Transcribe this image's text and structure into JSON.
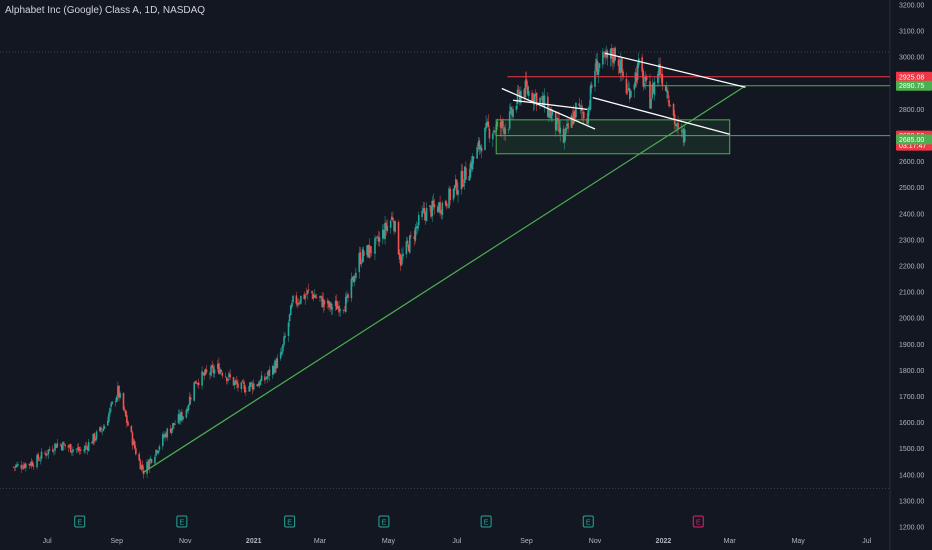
{
  "chart_data": {
    "type": "candlestick",
    "title": "Alphabet Inc (Google) Class A, 1D, NASDAQ",
    "y_axis": {
      "range": [
        1200,
        3200
      ],
      "ticks": [
        "3200.00",
        "3100.00",
        "3000.00",
        "2900.00",
        "2800.00",
        "2700.00",
        "2600.00",
        "2500.00",
        "2400.00",
        "2300.00",
        "2200.00",
        "2100.00",
        "2000.00",
        "1900.00",
        "1800.00",
        "1700.00",
        "1600.00",
        "1500.00",
        "1400.00",
        "1300.00",
        "1200.00"
      ],
      "side": "right"
    },
    "x_axis": {
      "ticks": [
        {
          "label": "Jul",
          "bold": false
        },
        {
          "label": "Sep",
          "bold": false
        },
        {
          "label": "Nov",
          "bold": false
        },
        {
          "label": "2021",
          "bold": true
        },
        {
          "label": "Mar",
          "bold": false
        },
        {
          "label": "May",
          "bold": false
        },
        {
          "label": "Jul",
          "bold": false
        },
        {
          "label": "Sep",
          "bold": false
        },
        {
          "label": "Nov",
          "bold": false
        },
        {
          "label": "2022",
          "bold": true
        },
        {
          "label": "Mar",
          "bold": false
        },
        {
          "label": "May",
          "bold": false
        },
        {
          "label": "Jul",
          "bold": false
        }
      ]
    },
    "price_path": [
      {
        "date": "2020-06-01",
        "close": 1430
      },
      {
        "date": "2020-06-20",
        "close": 1450
      },
      {
        "date": "2020-07-10",
        "close": 1520
      },
      {
        "date": "2020-08-01",
        "close": 1490
      },
      {
        "date": "2020-08-20",
        "close": 1580
      },
      {
        "date": "2020-09-02",
        "close": 1720
      },
      {
        "date": "2020-09-20",
        "close": 1460
      },
      {
        "date": "2020-09-25",
        "close": 1415
      },
      {
        "date": "2020-10-15",
        "close": 1560
      },
      {
        "date": "2020-11-01",
        "close": 1640
      },
      {
        "date": "2020-11-10",
        "close": 1760
      },
      {
        "date": "2020-12-01",
        "close": 1810
      },
      {
        "date": "2020-12-20",
        "close": 1730
      },
      {
        "date": "2021-01-10",
        "close": 1760
      },
      {
        "date": "2021-01-25",
        "close": 1850
      },
      {
        "date": "2021-02-05",
        "close": 2060
      },
      {
        "date": "2021-02-20",
        "close": 2100
      },
      {
        "date": "2021-03-10",
        "close": 2040
      },
      {
        "date": "2021-03-25",
        "close": 2060
      },
      {
        "date": "2021-04-05",
        "close": 2230
      },
      {
        "date": "2021-04-20",
        "close": 2280
      },
      {
        "date": "2021-05-05",
        "close": 2390
      },
      {
        "date": "2021-05-12",
        "close": 2220
      },
      {
        "date": "2021-06-01",
        "close": 2400
      },
      {
        "date": "2021-06-20",
        "close": 2440
      },
      {
        "date": "2021-07-10",
        "close": 2560
      },
      {
        "date": "2021-07-28",
        "close": 2720
      },
      {
        "date": "2021-08-15",
        "close": 2740
      },
      {
        "date": "2021-08-28",
        "close": 2880
      },
      {
        "date": "2021-09-10",
        "close": 2850
      },
      {
        "date": "2021-09-20",
        "close": 2800
      },
      {
        "date": "2021-10-04",
        "close": 2680
      },
      {
        "date": "2021-10-15",
        "close": 2800
      },
      {
        "date": "2021-10-25",
        "close": 2780
      },
      {
        "date": "2021-11-01",
        "close": 2960
      },
      {
        "date": "2021-11-12",
        "close": 2990
      },
      {
        "date": "2021-11-20",
        "close": 3020
      },
      {
        "date": "2021-11-30",
        "close": 2860
      },
      {
        "date": "2021-12-10",
        "close": 2960
      },
      {
        "date": "2021-12-20",
        "close": 2840
      },
      {
        "date": "2021-12-28",
        "close": 2960
      },
      {
        "date": "2022-01-05",
        "close": 2870
      },
      {
        "date": "2022-01-14",
        "close": 2700
      },
      {
        "date": "2022-01-20",
        "close": 2699.5
      }
    ],
    "price_tags": [
      {
        "name": "resistance-tag",
        "label": "2925.08",
        "value": 2925.08,
        "color": "#f23645"
      },
      {
        "name": "target-tag",
        "label": "2890.75",
        "value": 2890.75,
        "color": "#4caf50"
      },
      {
        "name": "last-price-tag",
        "label": "2699.50",
        "sublabel": "03:17:47",
        "value": 2699.5,
        "color": "#f23645"
      },
      {
        "name": "support-tag",
        "label": "2685.00",
        "value": 2685.0,
        "color": "#4caf50"
      }
    ],
    "earnings_markers": [
      {
        "label": "E",
        "date": "2020-07-30",
        "color": "#26a69a"
      },
      {
        "label": "E",
        "date": "2020-10-29",
        "color": "#26a69a"
      },
      {
        "label": "E",
        "date": "2021-02-02",
        "color": "#26a69a"
      },
      {
        "label": "E",
        "date": "2021-04-27",
        "color": "#26a69a"
      },
      {
        "label": "E",
        "date": "2021-07-27",
        "color": "#26a69a"
      },
      {
        "label": "E",
        "date": "2021-10-26",
        "color": "#26a69a"
      },
      {
        "label": "E",
        "date": "2022-02-01",
        "color": "#e91e63",
        "upcoming": true
      }
    ],
    "drawings": {
      "trendlines": [
        {
          "color": "#4caf50",
          "from": {
            "date": "2020-09-25",
            "price": 1410
          },
          "to": {
            "date": "2022-03-15",
            "price": 2890
          }
        },
        {
          "color": "#ffffff",
          "from": {
            "date": "2021-08-10",
            "price": 2880
          },
          "to": {
            "date": "2021-11-01",
            "price": 2725
          }
        },
        {
          "color": "#ffffff",
          "from": {
            "date": "2021-08-20",
            "price": 2835
          },
          "to": {
            "date": "2021-10-25",
            "price": 2800
          }
        },
        {
          "color": "#ffffff",
          "from": {
            "date": "2021-10-30",
            "price": 2845
          },
          "to": {
            "date": "2022-03-01",
            "price": 2705
          }
        },
        {
          "color": "#ffffff",
          "from": {
            "date": "2021-11-10",
            "price": 3015
          },
          "to": {
            "date": "2022-03-15",
            "price": 2885
          }
        }
      ],
      "horizontal_lines": [
        {
          "color": "#f23645",
          "price": 2925.08,
          "from_date": "2021-08-15"
        },
        {
          "color": "#4caf50",
          "price": 2890.75,
          "from_date": "2021-12-15"
        },
        {
          "color": "#4caf50",
          "price": 2699.5,
          "from_date": "2021-08-05"
        }
      ],
      "rectangles": [
        {
          "color": "#4caf50",
          "from_date": "2021-08-05",
          "to_date": "2022-03-01",
          "top": 2760,
          "bottom": 2630
        }
      ],
      "dotted_levels": [
        3020,
        1347
      ]
    },
    "grid": false,
    "legend": "none"
  }
}
